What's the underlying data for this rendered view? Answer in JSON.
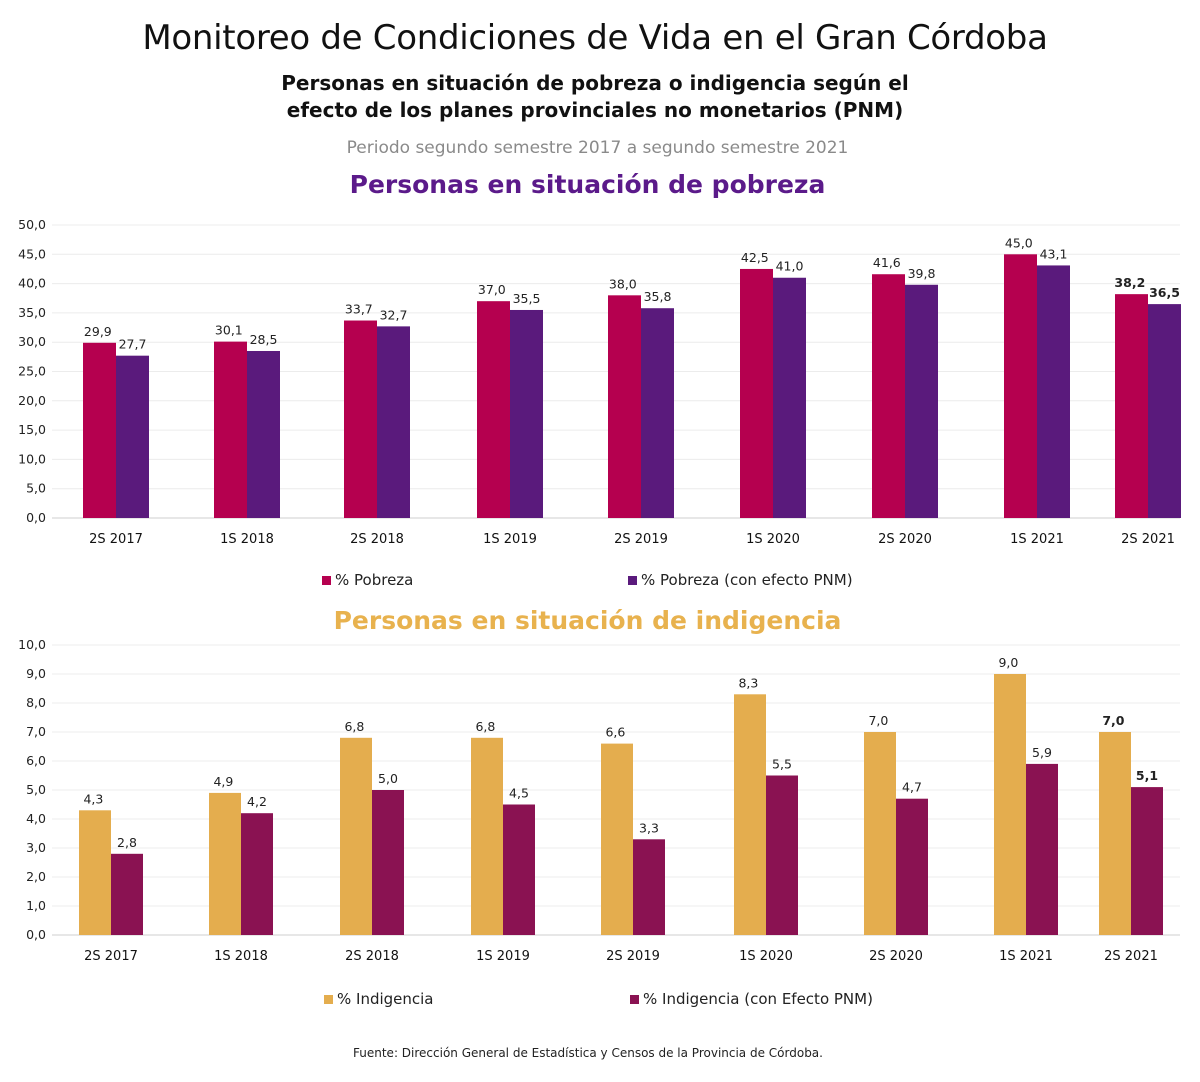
{
  "header": {
    "title": "Monitoreo de Condiciones de Vida en el Gran Córdoba",
    "subtitle_line1": "Personas en situación de pobreza o indigencia según el",
    "subtitle_line2": "efecto de los planes provinciales no monetarios (PNM)",
    "period": "Periodo segundo semestre 2017 a segundo semestre 2021"
  },
  "chart_data": [
    {
      "type": "bar",
      "title": "Personas en situación de pobreza",
      "categories": [
        "2S 2017",
        "1S 2018",
        "2S 2018",
        "1S 2019",
        "2S 2019",
        "1S 2020",
        "2S 2020",
        "1S 2021",
        "2S 2021"
      ],
      "series": [
        {
          "name": "% Pobreza",
          "color": "#b5004f",
          "values": [
            29.9,
            30.1,
            33.7,
            37.0,
            38.0,
            42.5,
            41.6,
            45.0,
            38.2
          ],
          "labels": [
            "29,9",
            "30,1",
            "33,7",
            "37,0",
            "38,0",
            "42,5",
            "41,6",
            "45,0",
            "38,2"
          ]
        },
        {
          "name": "% Pobreza (con efecto PNM)",
          "color": "#5a1a7c",
          "values": [
            27.7,
            28.5,
            32.7,
            35.5,
            35.8,
            41.0,
            39.8,
            43.1,
            36.5
          ],
          "labels": [
            "27,7",
            "28,5",
            "32,7",
            "35,5",
            "35,8",
            "41,0",
            "39,8",
            "43,1",
            "36,5"
          ]
        }
      ],
      "ylim": [
        0,
        50
      ],
      "yticks": [
        "0,0",
        "5,0",
        "10,0",
        "15,0",
        "20,0",
        "25,0",
        "30,0",
        "35,0",
        "40,0",
        "45,0",
        "50,0"
      ],
      "grid": true,
      "legend_position": "bottom"
    },
    {
      "type": "bar",
      "title": "Personas en situación de indigencia",
      "categories": [
        "2S 2017",
        "1S 2018",
        "2S 2018",
        "1S 2019",
        "2S 2019",
        "1S 2020",
        "2S 2020",
        "1S 2021",
        "2S 2021"
      ],
      "series": [
        {
          "name": "% Indigencia",
          "color": "#e4ad4e",
          "values": [
            4.3,
            4.9,
            6.8,
            6.8,
            6.6,
            8.3,
            7.0,
            9.0,
            7.0
          ],
          "labels": [
            "4,3",
            "4,9",
            "6,8",
            "6,8",
            "6,6",
            "8,3",
            "7,0",
            "9,0",
            "7,0"
          ]
        },
        {
          "name": "% Indigencia (con Efecto PNM)",
          "color": "#8a1252",
          "values": [
            2.8,
            4.2,
            5.0,
            4.5,
            3.3,
            5.5,
            4.7,
            5.9,
            5.1
          ],
          "labels": [
            "2,8",
            "4,2",
            "5,0",
            "4,5",
            "3,3",
            "5,5",
            "4,7",
            "5,9",
            "5,1"
          ]
        }
      ],
      "ylim": [
        0,
        10
      ],
      "yticks": [
        "0,0",
        "1,0",
        "2,0",
        "3,0",
        "4,0",
        "5,0",
        "6,0",
        "7,0",
        "8,0",
        "9,0",
        "10,0"
      ],
      "grid": true,
      "legend_position": "bottom"
    }
  ],
  "footer": {
    "source": "Fuente: Dirección General de Estadística y Censos de la Provincia de Córdoba."
  }
}
